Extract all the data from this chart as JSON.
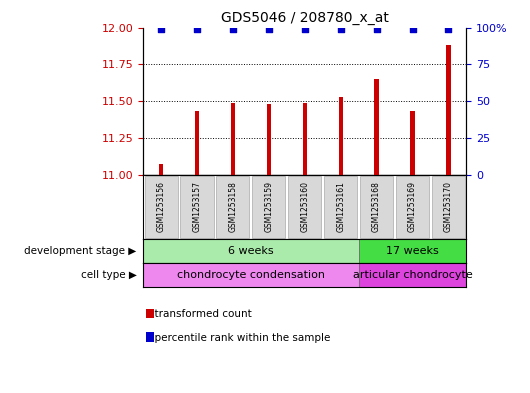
{
  "title": "GDS5046 / 208780_x_at",
  "samples": [
    "GSM1253156",
    "GSM1253157",
    "GSM1253158",
    "GSM1253159",
    "GSM1253160",
    "GSM1253161",
    "GSM1253168",
    "GSM1253169",
    "GSM1253170"
  ],
  "bar_values": [
    11.07,
    11.43,
    11.49,
    11.48,
    11.49,
    11.53,
    11.65,
    11.43,
    11.88
  ],
  "percentile_values": [
    99,
    99,
    99,
    99,
    99,
    99,
    99,
    99,
    99
  ],
  "ylim_left": [
    11.0,
    12.0
  ],
  "ylim_right": [
    0,
    100
  ],
  "yticks_left": [
    11.0,
    11.25,
    11.5,
    11.75,
    12.0
  ],
  "yticks_right": [
    0,
    25,
    50,
    75,
    100
  ],
  "bar_color": "#cc0000",
  "dot_color": "#0000cc",
  "grid_color": "#000000",
  "bar_width": 0.12,
  "development_stages": [
    {
      "label": "6 weeks",
      "start": 0,
      "end": 6,
      "color": "#aaeaaa"
    },
    {
      "label": "17 weeks",
      "start": 6,
      "end": 9,
      "color": "#44dd44"
    }
  ],
  "cell_types": [
    {
      "label": "chondrocyte condensation",
      "start": 0,
      "end": 6,
      "color": "#ee88ee"
    },
    {
      "label": "articular chondrocyte",
      "start": 6,
      "end": 9,
      "color": "#dd44dd"
    }
  ],
  "dev_stage_label": "development stage",
  "cell_type_label": "cell type",
  "legend_bar_label": "transformed count",
  "legend_dot_label": "percentile rank within the sample",
  "bg_color": "#ffffff",
  "plot_bg_color": "#ffffff",
  "tick_label_color_left": "#cc0000",
  "tick_label_color_right": "#0000cc",
  "sample_box_color": "#d8d8d8",
  "sample_box_edge": "#aaaaaa"
}
